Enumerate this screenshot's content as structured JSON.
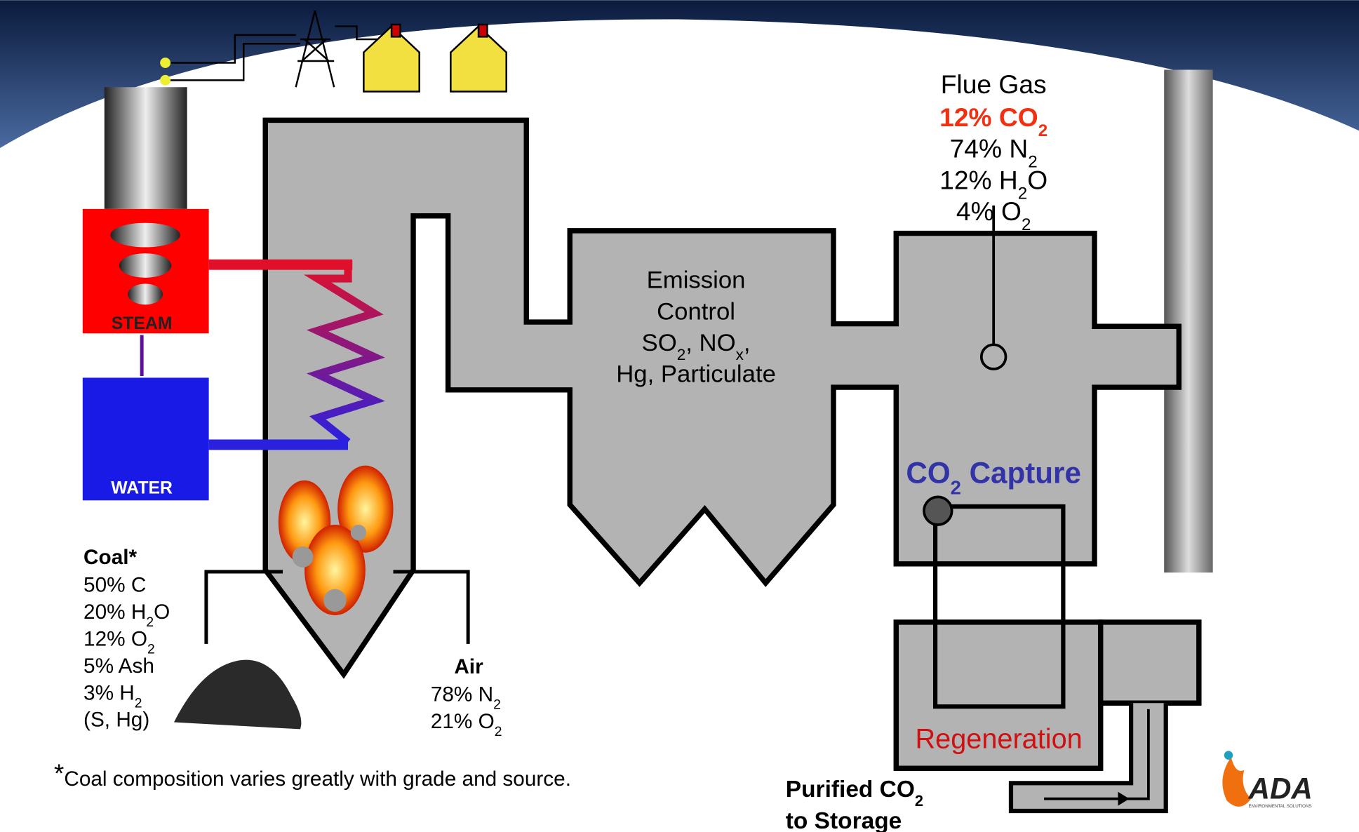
{
  "flue_gas": {
    "title": "Flue Gas",
    "lines": [
      [
        "12% CO",
        "2"
      ],
      [
        "74% N",
        "2"
      ],
      [
        "12% H",
        "2",
        "O"
      ],
      [
        "4% O",
        "2"
      ]
    ]
  },
  "emission_control": {
    "lines": [
      [
        "Emission"
      ],
      [
        "Control"
      ],
      [
        "SO",
        "2",
        ", NO",
        "x",
        ","
      ],
      [
        "Hg, Particulate"
      ]
    ]
  },
  "co2_capture": [
    "CO",
    "2",
    " Capture"
  ],
  "regeneration": "Regeneration",
  "steam": "STEAM",
  "water": "WATER",
  "coal": {
    "title": "Coal*",
    "lines": [
      [
        "50% C"
      ],
      [
        "20% H",
        "2",
        "O"
      ],
      [
        "12% O",
        "2"
      ],
      [
        "5% Ash"
      ],
      [
        "3% H",
        "2"
      ],
      [
        "(S, Hg)"
      ]
    ]
  },
  "air": {
    "title": "Air",
    "lines": [
      [
        "78% N",
        "2"
      ],
      [
        "21% O",
        "2"
      ]
    ]
  },
  "footnote": {
    "mark": "*",
    "text": "Coal composition varies greatly with grade and source."
  },
  "storage": {
    "lines": [
      [
        "Purified CO",
        "2"
      ],
      [
        "to Storage"
      ]
    ]
  },
  "logo": {
    "name": "ADA",
    "tagline": "ENVIRONMENTAL SOLUTIONS"
  }
}
